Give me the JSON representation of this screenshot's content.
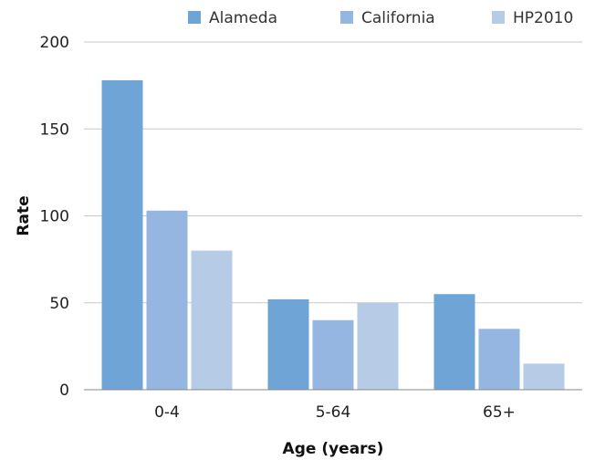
{
  "chart_data": {
    "type": "bar",
    "title": "",
    "xlabel": "Age (years)",
    "ylabel": "Rate",
    "categories": [
      "0-4",
      "5-64",
      "65+"
    ],
    "series": [
      {
        "name": "Alameda",
        "color": "#6fa4d6",
        "values": [
          178,
          52,
          55
        ]
      },
      {
        "name": "California",
        "color": "#95b6e0",
        "values": [
          103,
          40,
          35
        ]
      },
      {
        "name": "HP2010",
        "color": "#b5cbe6",
        "values": [
          80,
          50,
          15
        ]
      }
    ],
    "ylim": [
      0,
      200
    ],
    "yticks": [
      0,
      50,
      100,
      150,
      200
    ],
    "grid": true,
    "legend_position": "top"
  }
}
